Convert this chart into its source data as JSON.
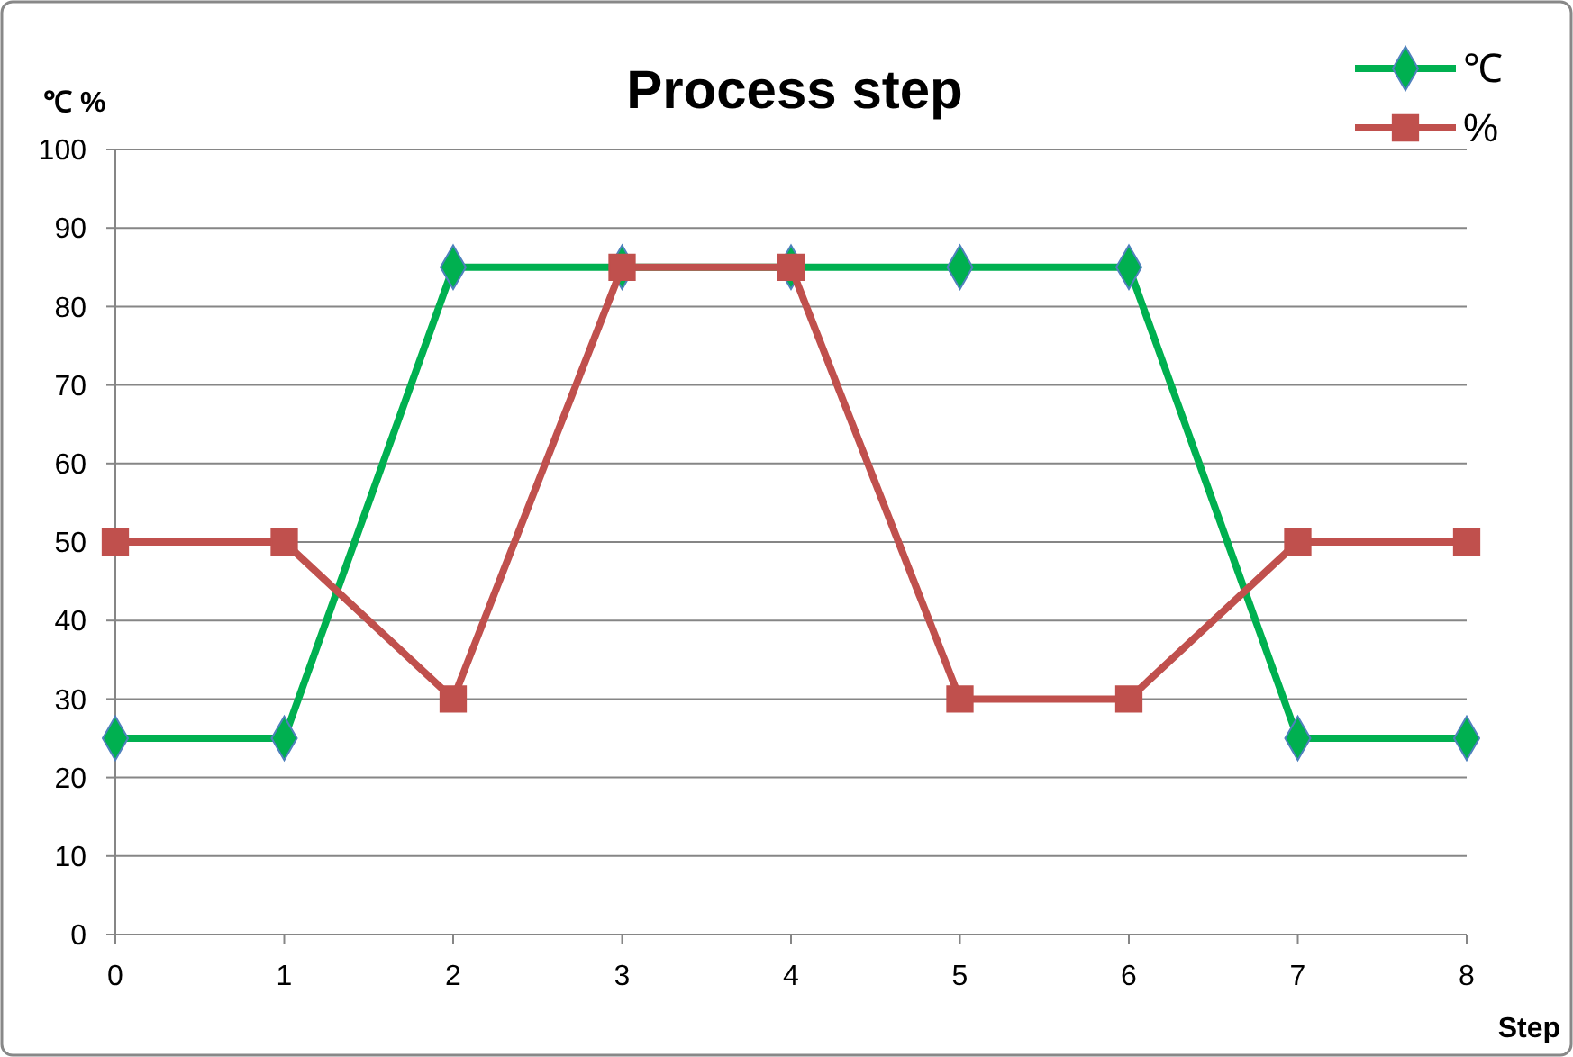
{
  "chart_data": {
    "type": "line",
    "title": "Process step",
    "xlabel": "Step",
    "ylabel": "℃ %",
    "x": [
      0,
      1,
      2,
      3,
      4,
      5,
      6,
      7,
      8
    ],
    "series": [
      {
        "name": "℃",
        "color": "#00b050",
        "marker": "diamond",
        "values": [
          25,
          25,
          85,
          85,
          85,
          85,
          85,
          25,
          25
        ]
      },
      {
        "name": "%",
        "color": "#c0504d",
        "marker": "square",
        "values": [
          50,
          50,
          30,
          85,
          85,
          30,
          30,
          50,
          50
        ]
      }
    ],
    "xlim": [
      0,
      8
    ],
    "xticks": [
      0,
      1,
      2,
      3,
      4,
      5,
      6,
      7,
      8
    ],
    "ylim": [
      0,
      100
    ],
    "yticks": [
      0,
      10,
      20,
      30,
      40,
      50,
      60,
      70,
      80,
      90,
      100
    ],
    "grid": "y",
    "legend": "top right",
    "line_style": "solid"
  }
}
